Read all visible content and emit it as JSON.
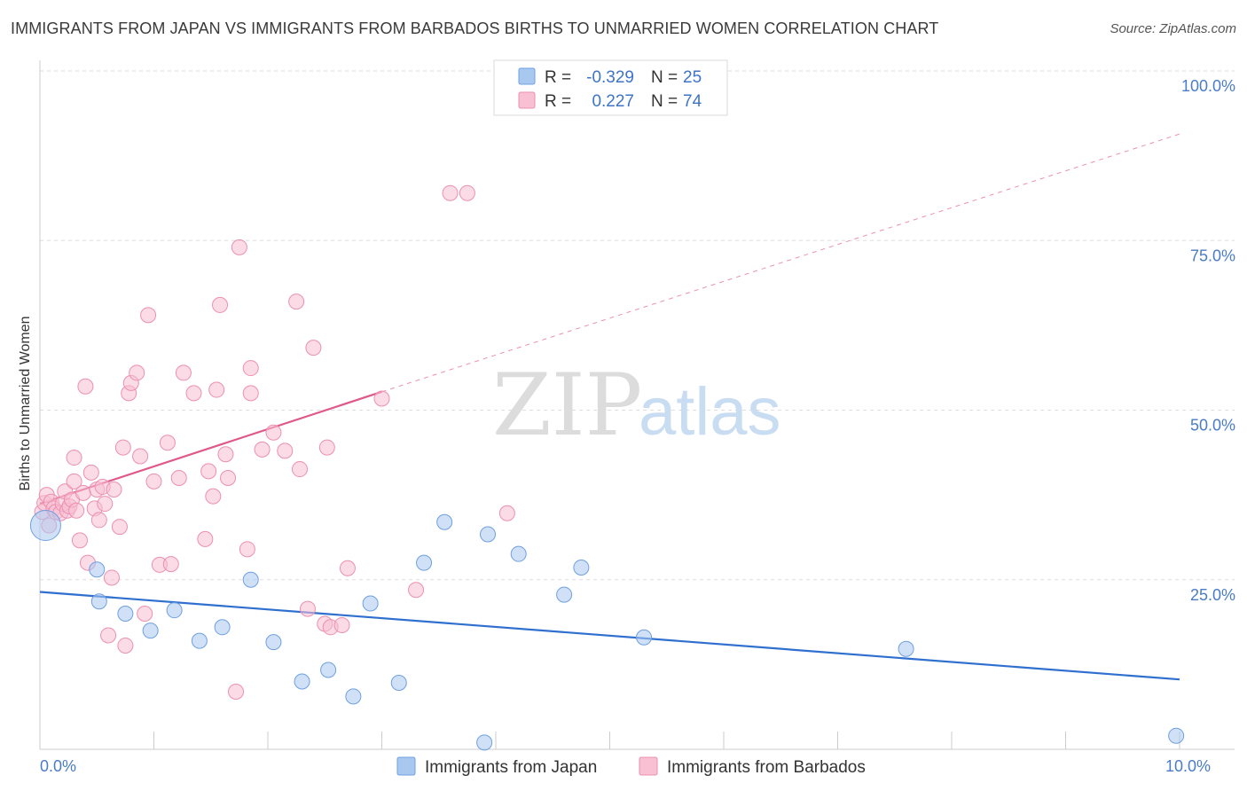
{
  "header": {
    "title": "IMMIGRANTS FROM JAPAN VS IMMIGRANTS FROM BARBADOS BIRTHS TO UNMARRIED WOMEN CORRELATION CHART",
    "source": "Source: ZipAtlas.com"
  },
  "watermark": {
    "zip": "ZIP",
    "atlas": "atlas"
  },
  "colors": {
    "japan_fill": "#a9c8f0",
    "japan_stroke": "#6f9fe0",
    "japan_line": "#2f6fd0",
    "barbados_fill": "#f8c0d2",
    "barbados_stroke": "#ec8fb0",
    "barbados_line": "#e0588a",
    "tick_text": "#4a7cc7",
    "grid": "#dddddd"
  },
  "stats": {
    "japan": {
      "r_label": "R =",
      "r_value": "-0.329",
      "n_label": "N =",
      "n_value": "25"
    },
    "barbados": {
      "r_label": "R =",
      "r_value": "0.227",
      "n_label": "N =",
      "n_value": "74"
    }
  },
  "chart_data": {
    "type": "scatter",
    "title": "IMMIGRANTS FROM JAPAN VS IMMIGRANTS FROM BARBADOS BIRTHS TO UNMARRIED WOMEN CORRELATION CHART",
    "xlabel": "",
    "ylabel": "Births to Unmarried Women",
    "xlim": [
      0,
      10
    ],
    "ylim": [
      0,
      100
    ],
    "x_tick_labels": [
      {
        "value": 0,
        "label": "0.0%"
      },
      {
        "value": 10,
        "label": "10.0%"
      }
    ],
    "y_tick_labels": [
      {
        "value": 25,
        "label": "25.0%"
      },
      {
        "value": 50,
        "label": "50.0%"
      },
      {
        "value": 75,
        "label": "75.0%"
      },
      {
        "value": 100,
        "label": "100.0%"
      }
    ],
    "grid": true,
    "legend_position": "bottom",
    "series": [
      {
        "name": "Immigrants from Japan",
        "color": "#a9c8f0",
        "points": [
          [
            0.05,
            33.0
          ],
          [
            0.5,
            26.5
          ],
          [
            0.52,
            21.8
          ],
          [
            0.75,
            20.0
          ],
          [
            0.97,
            17.5
          ],
          [
            1.18,
            20.5
          ],
          [
            1.4,
            16.0
          ],
          [
            1.6,
            18.0
          ],
          [
            1.85,
            25.0
          ],
          [
            2.05,
            15.8
          ],
          [
            2.3,
            10.0
          ],
          [
            2.53,
            11.7
          ],
          [
            2.75,
            7.8
          ],
          [
            2.9,
            21.5
          ],
          [
            3.15,
            9.8
          ],
          [
            3.37,
            27.5
          ],
          [
            3.55,
            33.5
          ],
          [
            3.9,
            1.0
          ],
          [
            3.93,
            31.7
          ],
          [
            4.2,
            28.8
          ],
          [
            4.6,
            22.8
          ],
          [
            4.75,
            26.8
          ],
          [
            5.3,
            16.5
          ],
          [
            7.6,
            14.8
          ],
          [
            9.97,
            2.0
          ]
        ],
        "trend": {
          "x": [
            0,
            10
          ],
          "y": [
            23.2,
            10.3
          ],
          "dashed_extension": false
        }
      },
      {
        "name": "Immigrants from Barbados",
        "color": "#f8c0d2",
        "points": [
          [
            0.02,
            35.0
          ],
          [
            0.04,
            36.3
          ],
          [
            0.06,
            37.5
          ],
          [
            0.08,
            33.0
          ],
          [
            0.1,
            36.5
          ],
          [
            0.12,
            35.5
          ],
          [
            0.14,
            35.0
          ],
          [
            0.18,
            34.8
          ],
          [
            0.2,
            36.2
          ],
          [
            0.22,
            38.0
          ],
          [
            0.24,
            35.2
          ],
          [
            0.26,
            35.8
          ],
          [
            0.28,
            36.8
          ],
          [
            0.3,
            43.0
          ],
          [
            0.3,
            39.5
          ],
          [
            0.32,
            35.2
          ],
          [
            0.35,
            30.8
          ],
          [
            0.38,
            37.8
          ],
          [
            0.4,
            53.5
          ],
          [
            0.42,
            27.5
          ],
          [
            0.45,
            40.8
          ],
          [
            0.48,
            35.5
          ],
          [
            0.5,
            38.3
          ],
          [
            0.52,
            33.8
          ],
          [
            0.55,
            38.7
          ],
          [
            0.57,
            36.2
          ],
          [
            0.6,
            16.8
          ],
          [
            0.63,
            25.3
          ],
          [
            0.65,
            38.3
          ],
          [
            0.7,
            32.8
          ],
          [
            0.73,
            44.5
          ],
          [
            0.75,
            15.3
          ],
          [
            0.78,
            52.5
          ],
          [
            0.8,
            54.0
          ],
          [
            0.85,
            55.5
          ],
          [
            0.88,
            43.2
          ],
          [
            0.92,
            20.0
          ],
          [
            0.95,
            64.0
          ],
          [
            1.0,
            39.5
          ],
          [
            1.05,
            27.2
          ],
          [
            1.12,
            45.2
          ],
          [
            1.15,
            27.3
          ],
          [
            1.22,
            40.0
          ],
          [
            1.26,
            55.5
          ],
          [
            1.35,
            52.5
          ],
          [
            1.45,
            31.0
          ],
          [
            1.48,
            41.0
          ],
          [
            1.52,
            37.3
          ],
          [
            1.55,
            53.0
          ],
          [
            1.58,
            65.5
          ],
          [
            1.63,
            43.5
          ],
          [
            1.65,
            40.0
          ],
          [
            1.72,
            8.5
          ],
          [
            1.75,
            74.0
          ],
          [
            1.82,
            29.5
          ],
          [
            1.85,
            52.5
          ],
          [
            1.85,
            56.2
          ],
          [
            1.95,
            44.2
          ],
          [
            2.05,
            46.7
          ],
          [
            2.15,
            44.0
          ],
          [
            2.25,
            66.0
          ],
          [
            2.28,
            41.3
          ],
          [
            2.35,
            20.7
          ],
          [
            2.4,
            59.2
          ],
          [
            2.5,
            18.5
          ],
          [
            2.52,
            44.5
          ],
          [
            2.55,
            18.0
          ],
          [
            2.7,
            26.7
          ],
          [
            3.0,
            51.7
          ],
          [
            3.3,
            23.5
          ],
          [
            3.6,
            82.0
          ],
          [
            3.75,
            82.0
          ],
          [
            4.1,
            34.8
          ],
          [
            2.65,
            18.3
          ]
        ],
        "trend": {
          "x": [
            0,
            3.0
          ],
          "y": [
            36.2,
            52.7
          ],
          "dashed_extension": {
            "x": [
              3.0,
              10
            ],
            "y": [
              52.7,
              90.7
            ]
          }
        }
      }
    ]
  }
}
